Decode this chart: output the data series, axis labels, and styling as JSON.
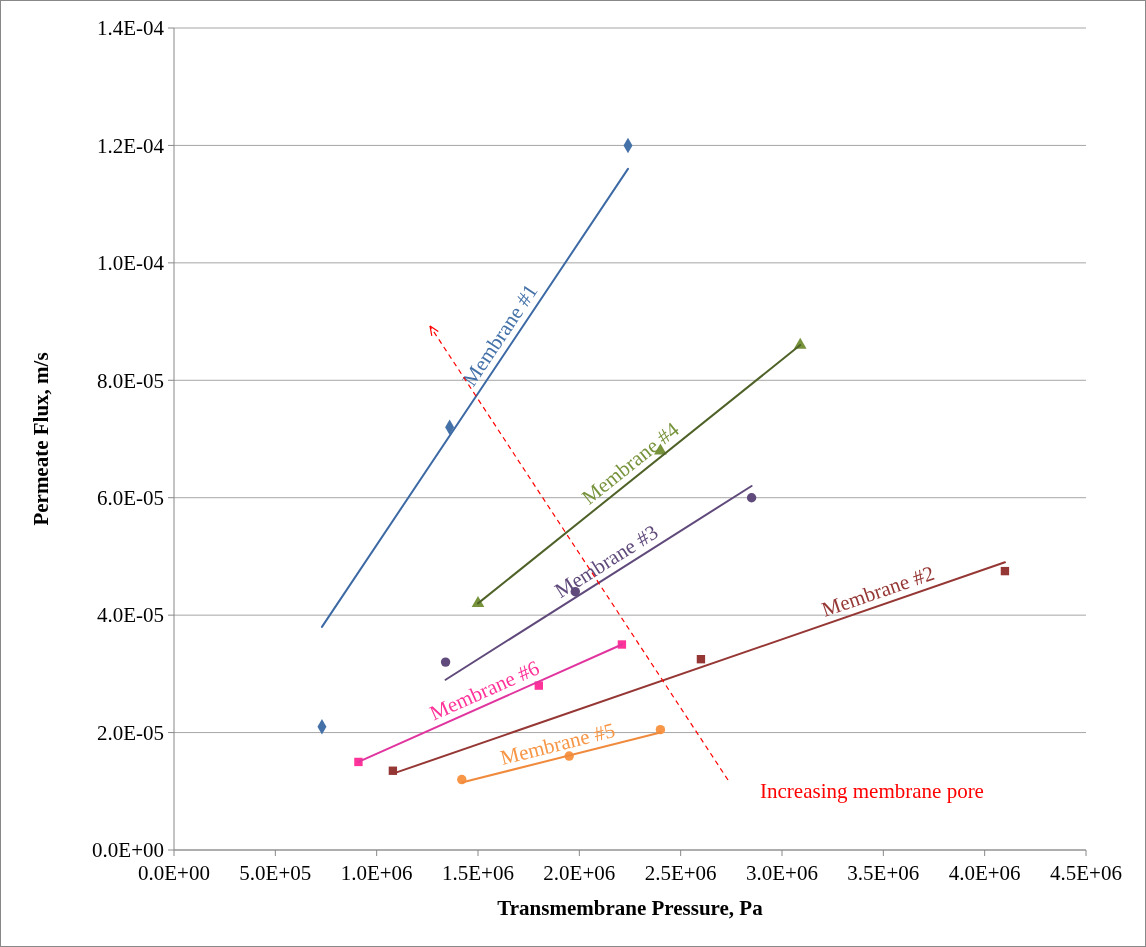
{
  "chart_data": {
    "type": "scatter",
    "xlabel": "Transmembrane Pressure, Pa",
    "ylabel": "Permeate Flux, m/s",
    "xlim": [
      0,
      4500000
    ],
    "ylim": [
      0,
      0.00014
    ],
    "xticks": [
      {
        "value": 0,
        "label": "0.0E+00"
      },
      {
        "value": 500000,
        "label": "5.0E+05"
      },
      {
        "value": 1000000,
        "label": "1.0E+06"
      },
      {
        "value": 1500000,
        "label": "1.5E+06"
      },
      {
        "value": 2000000,
        "label": "2.0E+06"
      },
      {
        "value": 2500000,
        "label": "2.5E+06"
      },
      {
        "value": 3000000,
        "label": "3.0E+06"
      },
      {
        "value": 3500000,
        "label": "3.5E+06"
      },
      {
        "value": 4000000,
        "label": "4.0E+06"
      },
      {
        "value": 4500000,
        "label": "4.5E+06"
      }
    ],
    "yticks": [
      {
        "value": 0,
        "label": "0.0E+00"
      },
      {
        "value": 2e-05,
        "label": "2.0E-05"
      },
      {
        "value": 4e-05,
        "label": "4.0E-05"
      },
      {
        "value": 6e-05,
        "label": "6.0E-05"
      },
      {
        "value": 8e-05,
        "label": "8.0E-05"
      },
      {
        "value": 0.0001,
        "label": "1.0E-04"
      },
      {
        "value": 0.00012,
        "label": "1.2E-04"
      },
      {
        "value": 0.00014,
        "label": "1.4E-04"
      }
    ],
    "grid": "y",
    "legend": false,
    "annotations": [
      "Increasing membrane pore"
    ],
    "series": [
      {
        "name": "Membrane #1",
        "marker": "diamond",
        "color": "#4472a8",
        "x": [
          730000,
          1360000,
          2240000
        ],
        "values": [
          2.1e-05,
          7.2e-05,
          0.00012
        ]
      },
      {
        "type": "line",
        "marker": "none",
        "color": "#3d6aa5",
        "x": [
          730000,
          2240000
        ],
        "values": [
          3.8e-05,
          0.000116
        ]
      },
      {
        "name": "Membrane #4",
        "marker": "triangle",
        "color": "#77933c",
        "x": [
          1500000,
          2400000,
          3090000
        ],
        "values": [
          4.2e-05,
          6.8e-05,
          8.6e-05
        ]
      },
      {
        "type": "line",
        "marker": "none",
        "color": "#4f6228",
        "x": [
          1500000,
          3090000
        ],
        "values": [
          4.2e-05,
          8.6e-05
        ]
      },
      {
        "name": "Membrane #3",
        "marker": "circle",
        "color": "#604a7b",
        "x": [
          1340000,
          1980000,
          2850000
        ],
        "values": [
          3.2e-05,
          4.4e-05,
          6e-05
        ]
      },
      {
        "type": "line",
        "marker": "none",
        "color": "#604a7b",
        "x": [
          1340000,
          2850000
        ],
        "values": [
          2.9e-05,
          6.2e-05
        ]
      },
      {
        "name": "Membrane #2",
        "marker": "square",
        "color": "#953735",
        "x": [
          1080000,
          2600000,
          4100000
        ],
        "values": [
          1.35e-05,
          3.25e-05,
          4.75e-05
        ]
      },
      {
        "type": "line",
        "marker": "none",
        "color": "#953735",
        "x": [
          1080000,
          4100000
        ],
        "values": [
          1.3e-05,
          4.9e-05
        ]
      },
      {
        "name": "Membrane #6",
        "marker": "square",
        "color": "#ff3399",
        "x": [
          910000,
          1800000,
          2210000
        ],
        "values": [
          1.5e-05,
          2.8e-05,
          3.5e-05
        ]
      },
      {
        "type": "line",
        "marker": "none",
        "color": "#e0359f",
        "x": [
          910000,
          2210000
        ],
        "values": [
          1.5e-05,
          3.5e-05
        ]
      },
      {
        "name": "Membrane #5",
        "marker": "circle",
        "color": "#f79646",
        "x": [
          1420000,
          1950000,
          2400000
        ],
        "values": [
          1.2e-05,
          1.6e-05,
          2.05e-05
        ]
      },
      {
        "type": "line",
        "marker": "none",
        "color": "#f08a3c",
        "x": [
          1420000,
          2400000
        ],
        "values": [
          1.15e-05,
          2e-05
        ]
      }
    ]
  }
}
